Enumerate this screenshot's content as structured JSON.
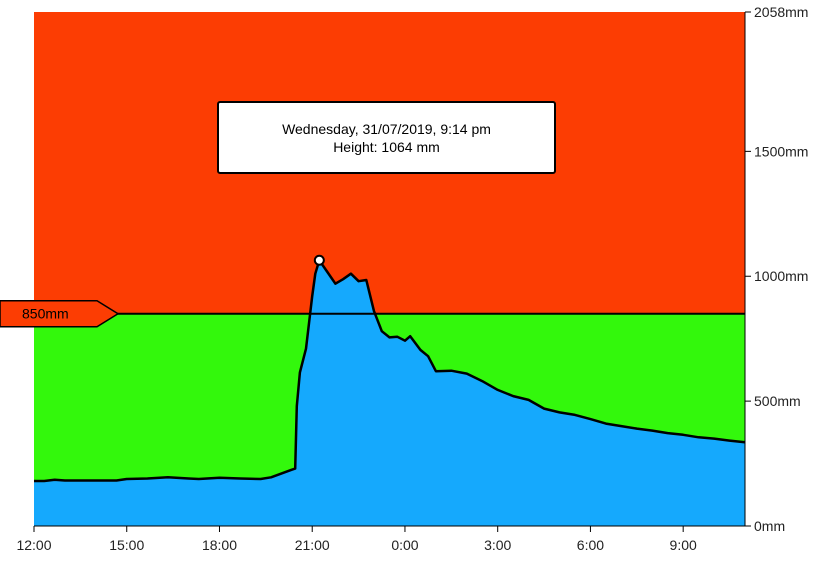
{
  "colors": {
    "above_threshold": "#fc3d03",
    "below_threshold": "#33f80c",
    "water": "#15a9fd",
    "line": "#000000"
  },
  "tooltip": {
    "line1": "Wednesday, 31/07/2019, 9:14 pm",
    "line2": "Height: 1064 mm"
  },
  "threshold": {
    "value": 850,
    "label": "850mm"
  },
  "chart_data": {
    "type": "area",
    "title": "",
    "xlabel": "",
    "ylabel": "",
    "x_start": "12:00",
    "x_end_hours": 23,
    "y_max_label": "2058mm",
    "ylim": [
      0,
      2058
    ],
    "grid": false,
    "y_ticks": [
      {
        "value": 0,
        "label": "0mm"
      },
      {
        "value": 500,
        "label": "500mm"
      },
      {
        "value": 1000,
        "label": "1000mm"
      },
      {
        "value": 1500,
        "label": "1500mm"
      },
      {
        "value": 2058,
        "label": "2058mm"
      }
    ],
    "x_ticks": [
      {
        "hours": 0,
        "label": "12:00"
      },
      {
        "hours": 3,
        "label": "15:00"
      },
      {
        "hours": 6,
        "label": "18:00"
      },
      {
        "hours": 9,
        "label": "21:00"
      },
      {
        "hours": 12,
        "label": "0:00"
      },
      {
        "hours": 15,
        "label": "3:00"
      },
      {
        "hours": 18,
        "label": "6:00"
      },
      {
        "hours": 21,
        "label": "9:00"
      }
    ],
    "highlight": {
      "hours": 9.23,
      "value": 1064
    },
    "series": [
      {
        "points": [
          [
            0.0,
            180
          ],
          [
            0.33,
            180
          ],
          [
            0.67,
            185
          ],
          [
            1.0,
            182
          ],
          [
            1.67,
            182
          ],
          [
            2.33,
            182
          ],
          [
            2.67,
            182
          ],
          [
            3.0,
            188
          ],
          [
            3.67,
            190
          ],
          [
            4.33,
            195
          ],
          [
            5.0,
            190
          ],
          [
            5.33,
            188
          ],
          [
            6.0,
            193
          ],
          [
            6.67,
            190
          ],
          [
            7.33,
            188
          ],
          [
            7.67,
            195
          ],
          [
            8.0,
            210
          ],
          [
            8.33,
            225
          ],
          [
            8.45,
            230
          ],
          [
            8.5,
            480
          ],
          [
            8.6,
            615
          ],
          [
            8.8,
            710
          ],
          [
            9.0,
            920
          ],
          [
            9.1,
            1010
          ],
          [
            9.23,
            1064
          ],
          [
            9.5,
            1015
          ],
          [
            9.75,
            970
          ],
          [
            10.0,
            988
          ],
          [
            10.25,
            1010
          ],
          [
            10.5,
            980
          ],
          [
            10.75,
            985
          ],
          [
            11.0,
            860
          ],
          [
            11.25,
            780
          ],
          [
            11.5,
            755
          ],
          [
            11.75,
            758
          ],
          [
            12.0,
            742
          ],
          [
            12.17,
            760
          ],
          [
            12.5,
            705
          ],
          [
            12.75,
            680
          ],
          [
            13.0,
            620
          ],
          [
            13.5,
            622
          ],
          [
            14.0,
            610
          ],
          [
            14.5,
            580
          ],
          [
            15.0,
            545
          ],
          [
            15.5,
            520
          ],
          [
            16.0,
            505
          ],
          [
            16.5,
            470
          ],
          [
            17.0,
            455
          ],
          [
            17.5,
            445
          ],
          [
            18.0,
            428
          ],
          [
            18.5,
            410
          ],
          [
            19.0,
            400
          ],
          [
            19.5,
            390
          ],
          [
            20.0,
            382
          ],
          [
            20.5,
            372
          ],
          [
            21.0,
            365
          ],
          [
            21.5,
            355
          ],
          [
            22.0,
            350
          ],
          [
            22.5,
            342
          ],
          [
            23.0,
            335
          ]
        ]
      }
    ]
  }
}
